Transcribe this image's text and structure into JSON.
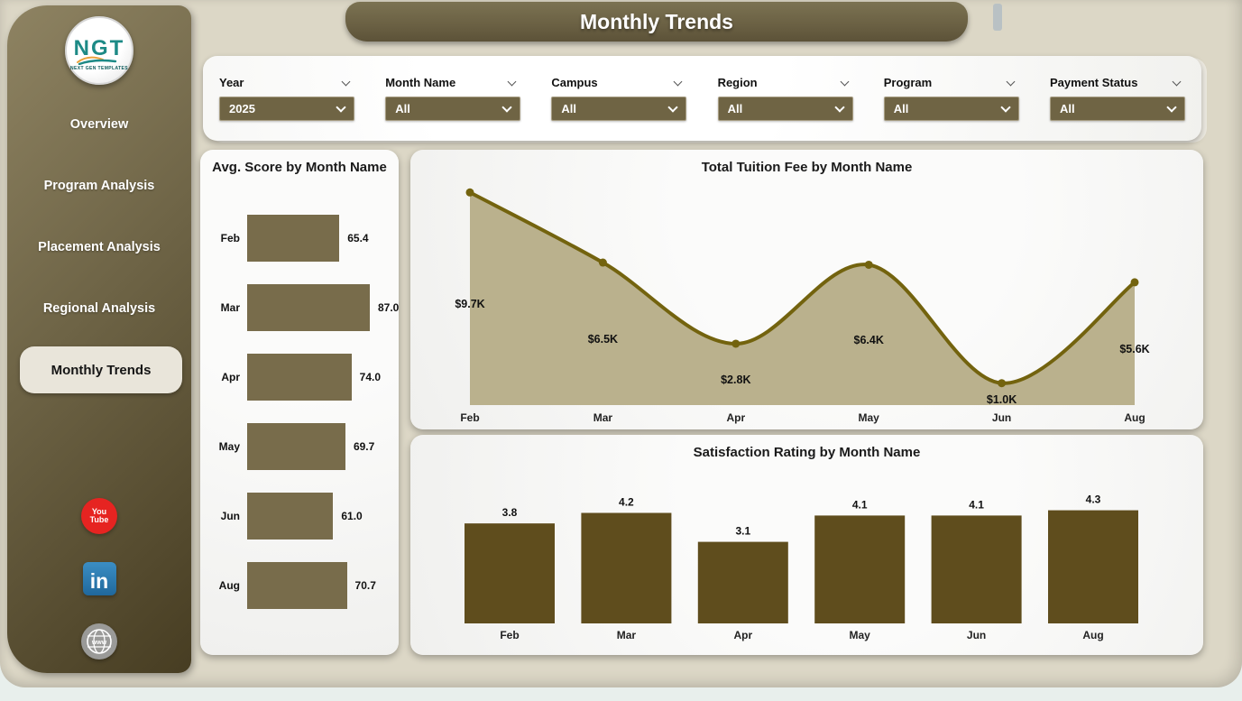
{
  "app": {
    "title": "Monthly Trends"
  },
  "sidebar": {
    "logo": {
      "text": "NGT",
      "subtext": "NEXT GEN TEMPLATES"
    },
    "items": [
      {
        "label": "Overview",
        "active": false
      },
      {
        "label": "Program Analysis",
        "active": false
      },
      {
        "label": "Placement Analysis",
        "active": false
      },
      {
        "label": "Regional Analysis",
        "active": false
      },
      {
        "label": "Monthly Trends",
        "active": true
      }
    ],
    "social": [
      {
        "name": "youtube",
        "line1": "You",
        "line2": "Tube"
      },
      {
        "name": "linkedin",
        "label": "in"
      },
      {
        "name": "website",
        "label": "www"
      }
    ]
  },
  "filters": [
    {
      "label": "Year",
      "value": "2025"
    },
    {
      "label": "Month Name",
      "value": "All"
    },
    {
      "label": "Campus",
      "value": "All"
    },
    {
      "label": "Region",
      "value": "All"
    },
    {
      "label": "Program",
      "value": "All"
    },
    {
      "label": "Payment Status",
      "value": "All"
    }
  ],
  "colors": {
    "hbar_fill": "#786c4b",
    "area_fill": "#b6ad87",
    "area_line": "#73630e",
    "vbar_fill": "#5f4d1d",
    "label_text": "#111111"
  },
  "chart_data": [
    {
      "type": "bar",
      "orientation": "horizontal",
      "title": "Avg. Score by Month Name",
      "categories": [
        "Feb",
        "Mar",
        "Apr",
        "May",
        "Jun",
        "Aug"
      ],
      "values": [
        65.4,
        87.0,
        74.0,
        69.7,
        61.0,
        70.7
      ],
      "value_labels": [
        "65.4",
        "87.0",
        "74.0",
        "69.7",
        "61.0",
        "70.7"
      ],
      "xlim": [
        0,
        87
      ],
      "grid": false,
      "legend": "none"
    },
    {
      "type": "area",
      "title": "Total Tuition Fee by Month Name",
      "categories": [
        "Feb",
        "Mar",
        "Apr",
        "May",
        "Jun",
        "Aug"
      ],
      "values": [
        9700,
        6500,
        2800,
        6400,
        1000,
        5600
      ],
      "value_labels": [
        "$9.7K",
        "$6.5K",
        "$2.8K",
        "$6.4K",
        "$1.0K",
        "$5.6K"
      ],
      "xlabel": "Month Name",
      "ylabel": "Total Tuition Fee",
      "ylim": [
        0,
        10000
      ],
      "grid": false,
      "legend": "none"
    },
    {
      "type": "bar",
      "orientation": "vertical",
      "title": "Satisfaction Rating by Month Name",
      "categories": [
        "Feb",
        "Mar",
        "Apr",
        "May",
        "Jun",
        "Aug"
      ],
      "values": [
        3.8,
        4.2,
        3.1,
        4.1,
        4.1,
        4.3
      ],
      "value_labels": [
        "3.8",
        "4.2",
        "3.1",
        "4.1",
        "4.1",
        "4.3"
      ],
      "ylim": [
        0,
        6
      ],
      "grid": false,
      "legend": "none"
    }
  ]
}
